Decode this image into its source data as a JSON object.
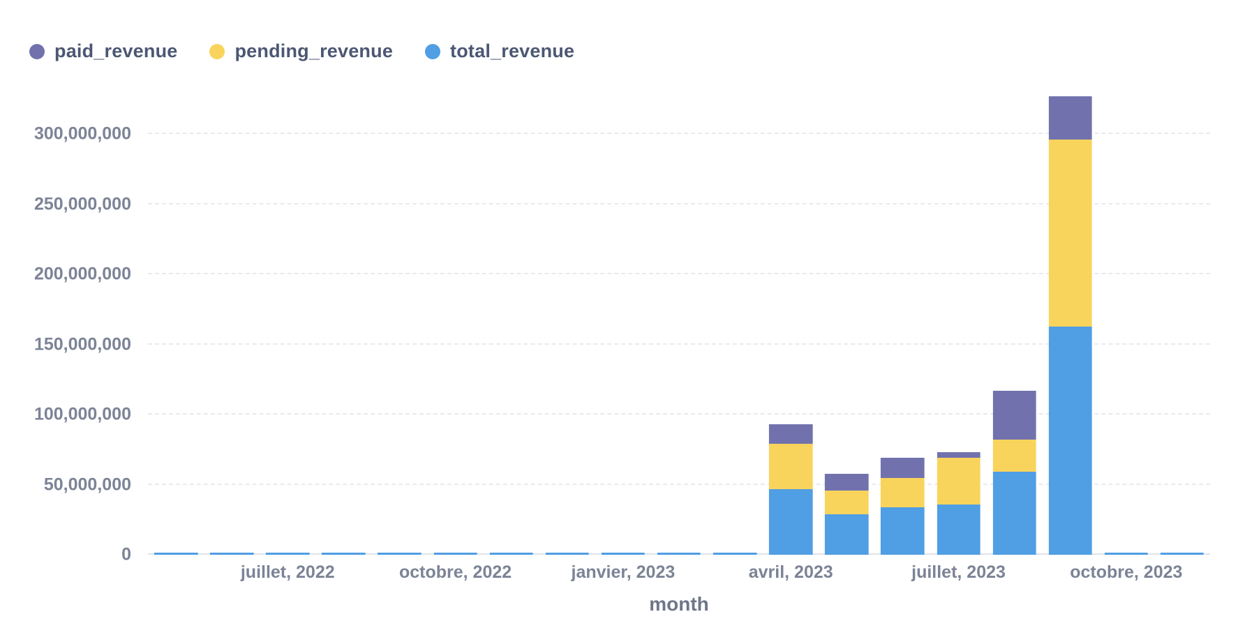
{
  "legend": {
    "position": "top-left",
    "items": [
      {
        "label": "paid_revenue",
        "color": "#7172AD"
      },
      {
        "label": "pending_revenue",
        "color": "#F9D45C"
      },
      {
        "label": "total_revenue",
        "color": "#509EE3"
      }
    ]
  },
  "chart_data": {
    "type": "bar",
    "stacked": true,
    "title": "",
    "xlabel": "month",
    "ylabel": "",
    "grid": "horizontal-dashed",
    "legend_position": "top-left",
    "ylim": [
      0,
      340000000
    ],
    "y_ticks": [
      0,
      50000000,
      100000000,
      150000000,
      200000000,
      250000000,
      300000000
    ],
    "categories": [
      "mai, 2022",
      "juin, 2022",
      "juillet, 2022",
      "août, 2022",
      "septembre, 2022",
      "octobre, 2022",
      "novembre, 2022",
      "décembre, 2022",
      "janvier, 2023",
      "février, 2023",
      "mars, 2023",
      "avril, 2023",
      "mai, 2023",
      "juin, 2023",
      "juillet, 2023",
      "août, 2023",
      "septembre, 2023",
      "octobre, 2023",
      "novembre, 2023"
    ],
    "x_tick_labels": [
      {
        "index": 2,
        "label": "juillet, 2022"
      },
      {
        "index": 5,
        "label": "octobre, 2022"
      },
      {
        "index": 8,
        "label": "janvier, 2023"
      },
      {
        "index": 11,
        "label": "avril, 2023"
      },
      {
        "index": 14,
        "label": "juillet, 2023"
      },
      {
        "index": 17,
        "label": "octobre, 2023"
      }
    ],
    "stack_order": [
      "total_revenue",
      "pending_revenue",
      "paid_revenue"
    ],
    "series": [
      {
        "name": "total_revenue",
        "color": "#509EE3",
        "values": [
          800000,
          800000,
          800000,
          800000,
          800000,
          800000,
          800000,
          800000,
          800000,
          800000,
          800000,
          47000000,
          29000000,
          34000000,
          36000000,
          59000000,
          163000000,
          800000,
          800000
        ]
      },
      {
        "name": "pending_revenue",
        "color": "#F9D45C",
        "values": [
          0,
          0,
          0,
          0,
          0,
          0,
          0,
          0,
          0,
          0,
          0,
          32000000,
          17000000,
          21000000,
          33000000,
          23000000,
          133000000,
          0,
          0
        ]
      },
      {
        "name": "paid_revenue",
        "color": "#7172AD",
        "values": [
          0,
          0,
          0,
          0,
          0,
          0,
          0,
          0,
          0,
          0,
          0,
          14000000,
          12000000,
          14000000,
          4000000,
          35000000,
          31000000,
          0,
          0
        ]
      }
    ]
  }
}
